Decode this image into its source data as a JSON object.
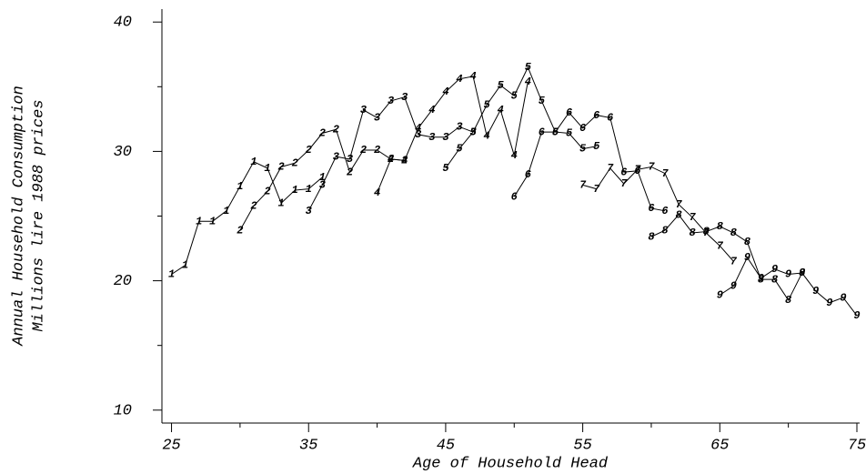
{
  "chart_data": {
    "type": "line",
    "x_label": "Age of Household Head",
    "y_label": [
      "Annual Household Consumption",
      "Millions lire 1988 prices"
    ],
    "xlim": [
      24.3,
      75.2
    ],
    "xticks": [
      25,
      35,
      45,
      55,
      65,
      75
    ],
    "xminorticks": [
      30,
      40,
      50,
      60,
      70
    ],
    "ylim": [
      9,
      41
    ],
    "yticks": [
      10,
      20,
      30,
      40
    ],
    "yminorticks": [
      15,
      25,
      35
    ],
    "series": [
      {
        "name": "1",
        "color": "#000000",
        "x": [
          25,
          26,
          27,
          28,
          29,
          30,
          31,
          32,
          33,
          34,
          35,
          36
        ],
        "values": [
          20.5,
          21.2,
          24.6,
          24.6,
          25.4,
          27.3,
          29.2,
          28.7,
          26.0,
          27.0,
          27.1,
          28.0
        ]
      },
      {
        "name": "2",
        "color": "#000000",
        "x": [
          30,
          31,
          32,
          33,
          34,
          35,
          36,
          37,
          38,
          39,
          40,
          41,
          42
        ],
        "values": [
          23.9,
          25.8,
          26.9,
          28.8,
          29.1,
          30.1,
          31.4,
          31.7,
          28.4,
          30.1,
          30.1,
          29.4,
          29.3
        ]
      },
      {
        "name": "3",
        "color": "#000000",
        "x": [
          35,
          36,
          37,
          38,
          39,
          40,
          41,
          42,
          43,
          44,
          45,
          46,
          47
        ],
        "values": [
          25.4,
          27.4,
          29.6,
          29.4,
          33.2,
          32.6,
          33.9,
          34.2,
          31.3,
          31.1,
          31.1,
          31.9,
          31.5
        ]
      },
      {
        "name": "4",
        "color": "#000000",
        "x": [
          40,
          41,
          42,
          43,
          44,
          45,
          46,
          47,
          48,
          49,
          50,
          51
        ],
        "values": [
          26.8,
          29.4,
          29.3,
          31.8,
          33.2,
          34.6,
          35.6,
          35.8,
          31.2,
          33.2,
          29.7,
          35.4
        ]
      },
      {
        "name": "5",
        "color": "#000000",
        "x": [
          45,
          46,
          47,
          48,
          49,
          50,
          51,
          52,
          53,
          54,
          55,
          56
        ],
        "values": [
          28.7,
          30.2,
          31.5,
          33.6,
          35.1,
          34.3,
          36.5,
          33.9,
          31.5,
          31.4,
          30.2,
          30.4
        ]
      },
      {
        "name": "6",
        "color": "#000000",
        "x": [
          50,
          51,
          52,
          53,
          54,
          55,
          56,
          57,
          58,
          59,
          60,
          61
        ],
        "values": [
          26.5,
          28.2,
          31.5,
          31.5,
          33.0,
          31.8,
          32.8,
          32.6,
          28.4,
          28.5,
          25.6,
          25.4
        ]
      },
      {
        "name": "7",
        "color": "#000000",
        "x": [
          55,
          56,
          57,
          58,
          59,
          60,
          61,
          62,
          63,
          64,
          65,
          66
        ],
        "values": [
          27.4,
          27.1,
          28.7,
          27.5,
          28.6,
          28.8,
          28.3,
          25.9,
          24.9,
          23.7,
          22.7,
          21.5
        ]
      },
      {
        "name": "8",
        "color": "#000000",
        "x": [
          60,
          61,
          62,
          63,
          64,
          65,
          66,
          67,
          68,
          69,
          70,
          71
        ],
        "values": [
          23.4,
          23.9,
          25.1,
          23.7,
          23.8,
          24.2,
          23.7,
          23.0,
          20.1,
          20.1,
          18.5,
          20.6
        ]
      },
      {
        "name": "9",
        "color": "#000000",
        "x": [
          65,
          66,
          67,
          68,
          69,
          70,
          71,
          72,
          73,
          74,
          75
        ],
        "values": [
          18.9,
          19.6,
          21.8,
          20.2,
          20.9,
          20.5,
          20.6,
          19.2,
          18.3,
          18.7,
          17.3
        ]
      }
    ]
  }
}
